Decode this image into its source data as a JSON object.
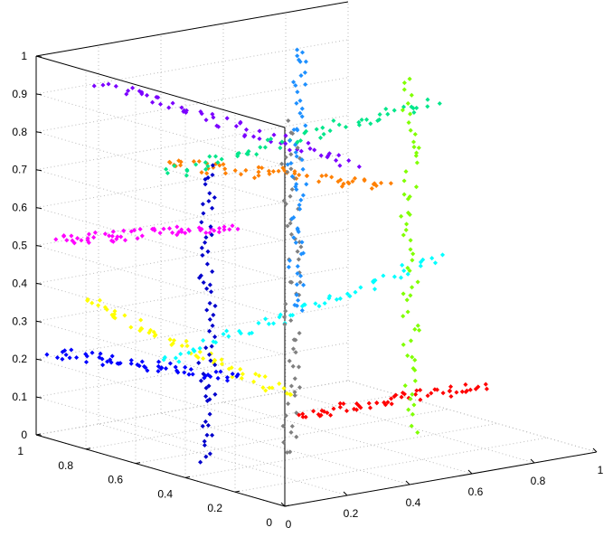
{
  "chart_data": {
    "type": "scatter",
    "title": "",
    "xlabel": "",
    "ylabel": "",
    "zlabel": "",
    "dimensions": 3,
    "grid": true,
    "legend": "none",
    "xlim": [
      0,
      1
    ],
    "ylim": [
      0,
      1
    ],
    "zlim": [
      0,
      1
    ],
    "x_ticks": [
      "0",
      "0.2",
      "0.4",
      "0.6",
      "0.8",
      "1"
    ],
    "y_ticks": [
      "0",
      "0.2",
      "0.4",
      "0.6",
      "0.8",
      "1"
    ],
    "z_ticks": [
      "0",
      "0.1",
      "0.2",
      "0.3",
      "0.4",
      "0.5",
      "0.6",
      "0.7",
      "0.8",
      "0.9",
      "1"
    ],
    "series": [
      {
        "color": "#7b00ff",
        "points_per_line": 60,
        "from": [
          0.1,
          0.85,
          0.94
        ],
        "to": [
          0.3,
          0.1,
          0.84
        ]
      },
      {
        "color": "#ff8000",
        "points_per_line": 60,
        "from": [
          0.1,
          0.6,
          0.78
        ],
        "to": [
          0.8,
          0.6,
          0.62
        ]
      },
      {
        "color": "#ff00ff",
        "points_per_line": 60,
        "from": [
          0.0,
          0.92,
          0.53
        ],
        "to": [
          0.0,
          0.2,
          0.7
        ]
      },
      {
        "color": "#00e68a",
        "points_per_line": 60,
        "from": [
          0.1,
          0.6,
          0.75
        ],
        "to": [
          0.95,
          0.6,
          0.82
        ]
      },
      {
        "color": "#ffff00",
        "points_per_line": 60,
        "from": [
          0.0,
          0.8,
          0.39
        ],
        "to": [
          0.1,
          0.1,
          0.26
        ]
      },
      {
        "color": "#00ffff",
        "points_per_line": 60,
        "from": [
          0.0,
          0.5,
          0.29
        ],
        "to": [
          0.9,
          0.5,
          0.43
        ]
      },
      {
        "color": "#0000ff",
        "points_per_line": 60,
        "from": [
          0.0,
          0.93,
          0.23
        ],
        "to": [
          0.0,
          0.2,
          0.3
        ]
      },
      {
        "color": "#ff0000",
        "points_per_line": 60,
        "from": [
          0.2,
          0.2,
          0.17
        ],
        "to": [
          0.8,
          0.2,
          0.17
        ]
      },
      {
        "color": "#0000cc",
        "points_per_line": 60,
        "from": [
          0.15,
          0.5,
          0.0
        ],
        "to": [
          0.15,
          0.5,
          0.78
        ]
      },
      {
        "color": "#808080",
        "points_per_line": 60,
        "from": [
          0.1,
          0.1,
          0.1
        ],
        "to": [
          0.1,
          0.1,
          0.97
        ]
      },
      {
        "color": "#1e90ff",
        "points_per_line": 60,
        "from": [
          0.6,
          0.7,
          0.3
        ],
        "to": [
          0.6,
          0.7,
          1.0
        ]
      },
      {
        "color": "#80ff00",
        "points_per_line": 60,
        "from": [
          0.8,
          0.5,
          0.0
        ],
        "to": [
          0.8,
          0.5,
          0.92
        ]
      }
    ]
  }
}
